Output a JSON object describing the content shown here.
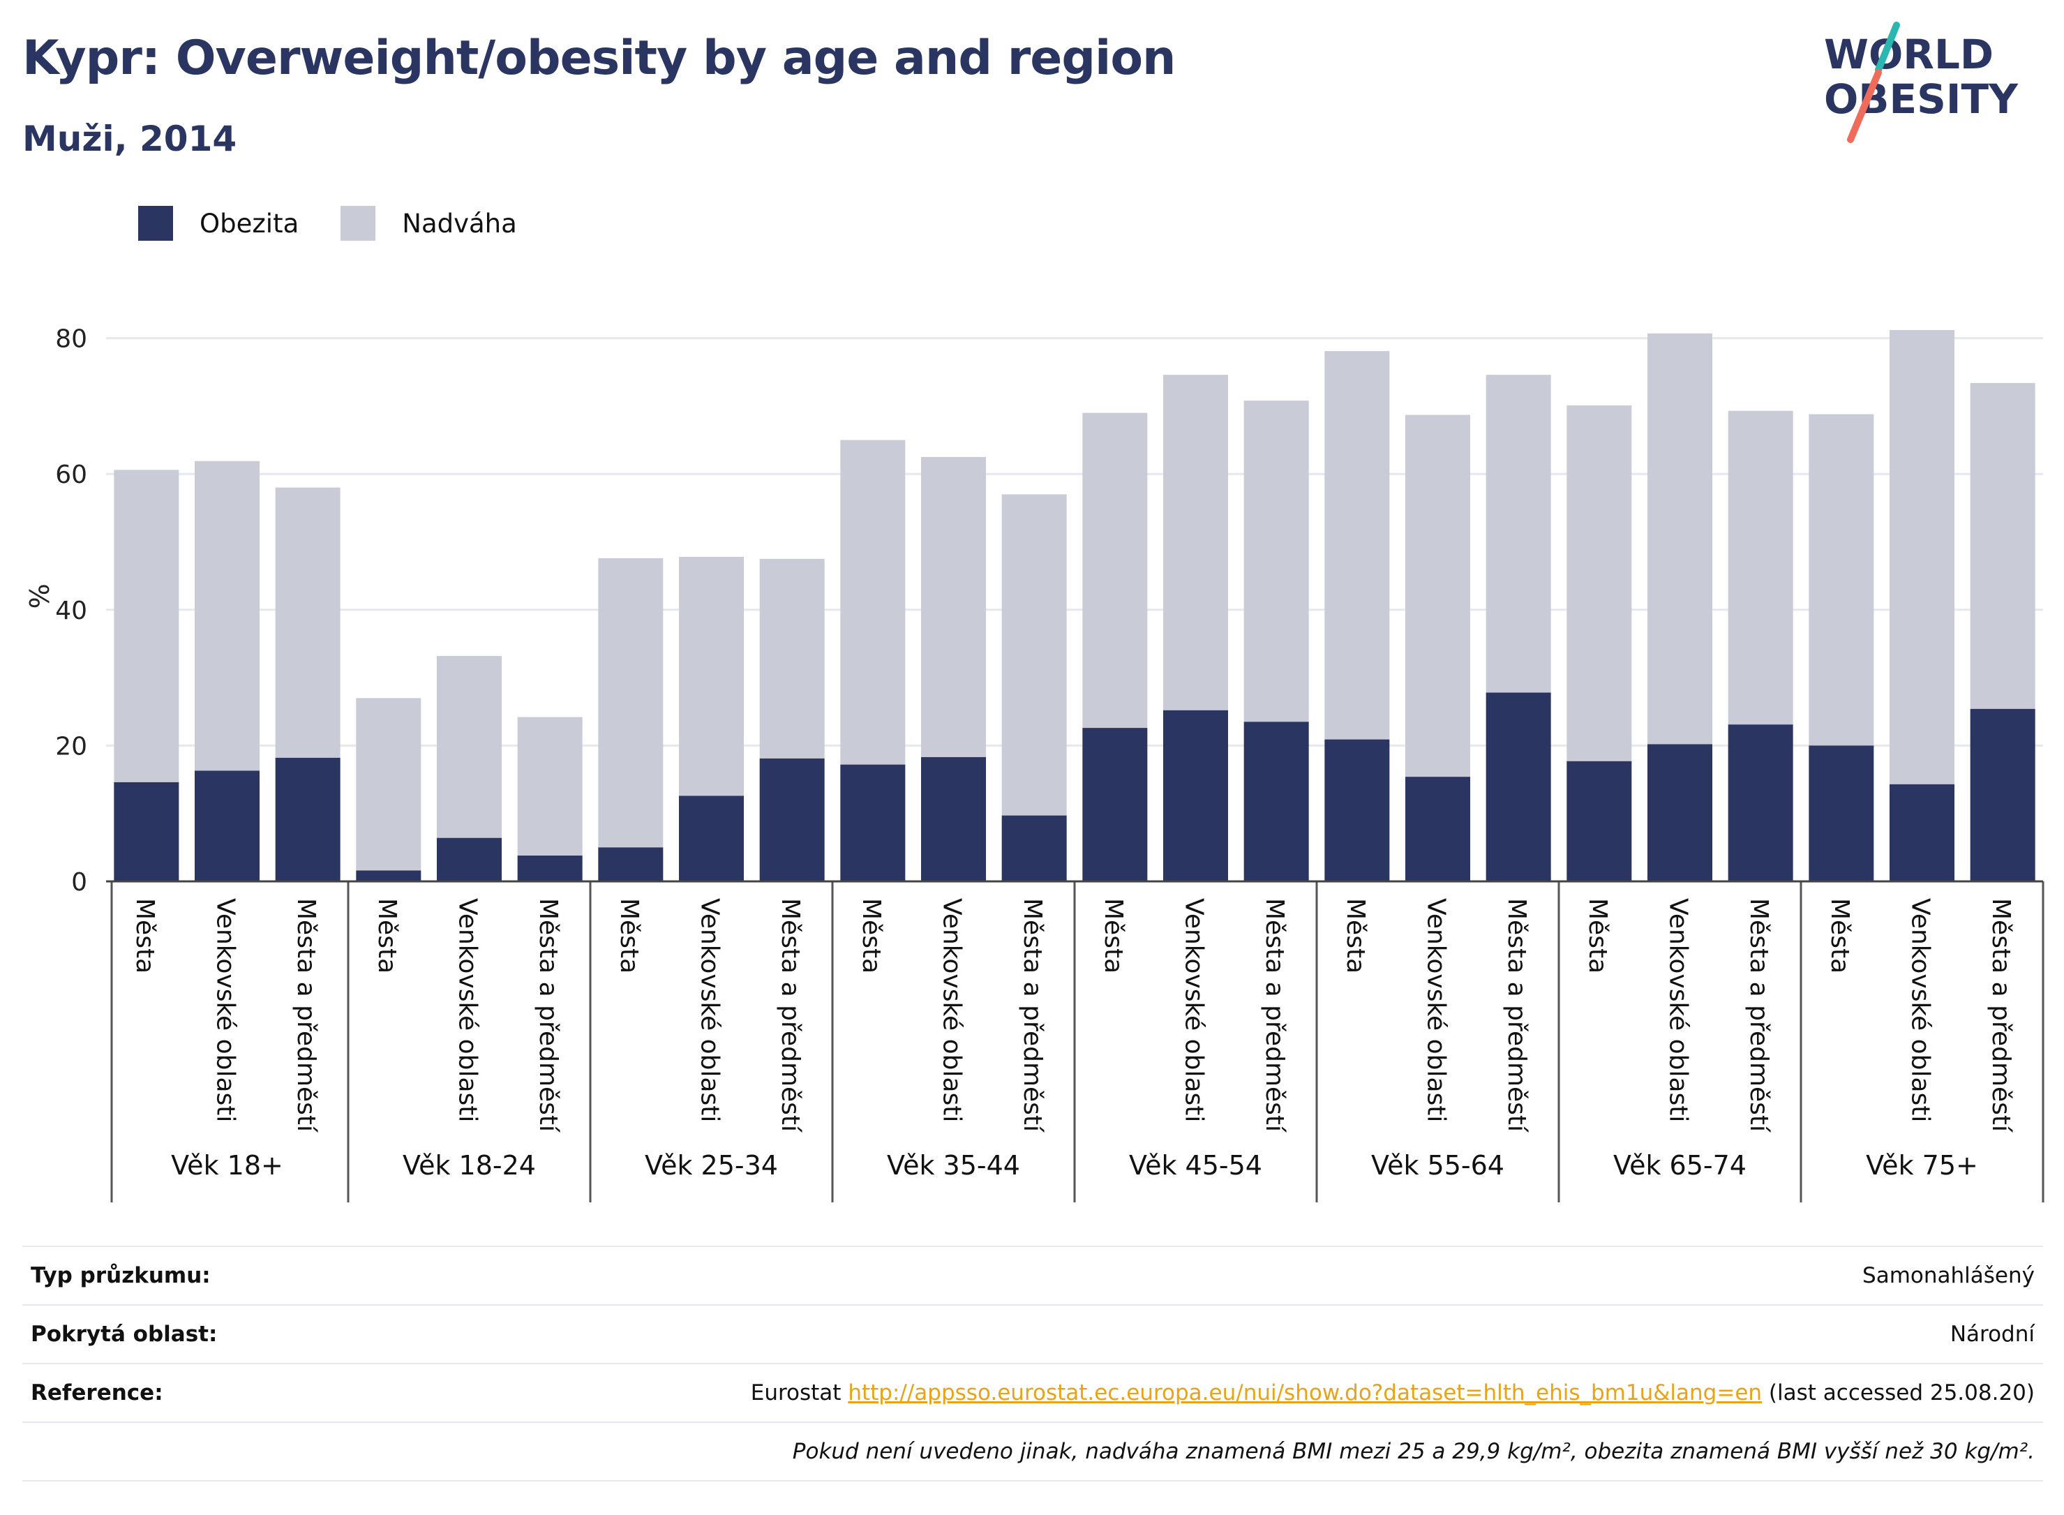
{
  "header": {
    "title": "Kypr: Overweight/obesity by age and region",
    "subtitle": "Muži, 2014"
  },
  "logo": {
    "line1": "WORLD",
    "line2": "OBESITY"
  },
  "legend": {
    "obesity_label": "Obezita",
    "overweight_label": "Nadváha"
  },
  "colors": {
    "obesity": "#2a3561",
    "overweight": "#c9cbd6",
    "grid": "#e6e8ef",
    "link": "#e8a317"
  },
  "chart_data": {
    "type": "bar",
    "stacked": true,
    "ylabel": "%",
    "ylim": [
      0,
      85
    ],
    "yticks": [
      0,
      20,
      40,
      60,
      80
    ],
    "grid": true,
    "legend_position": "top-left",
    "groups": [
      {
        "label": "Věk 18+",
        "categories": [
          "Města",
          "Venkovské oblasti",
          "Města a předměstí"
        ],
        "obesity": [
          14.6,
          16.3,
          18.2
        ],
        "overweight": [
          46.0,
          45.6,
          39.8
        ]
      },
      {
        "label": "Věk 18-24",
        "categories": [
          "Města",
          "Venkovské oblasti",
          "Města a předměstí"
        ],
        "obesity": [
          1.6,
          6.4,
          3.8
        ],
        "overweight": [
          25.4,
          26.8,
          20.4
        ]
      },
      {
        "label": "Věk 25-34",
        "categories": [
          "Města",
          "Venkovské oblasti",
          "Města a předměstí"
        ],
        "obesity": [
          5.0,
          12.6,
          18.1
        ],
        "overweight": [
          42.6,
          35.2,
          29.4
        ]
      },
      {
        "label": "Věk 35-44",
        "categories": [
          "Města",
          "Venkovské oblasti",
          "Města a předměstí"
        ],
        "obesity": [
          17.2,
          18.3,
          9.7
        ],
        "overweight": [
          47.8,
          44.2,
          47.3
        ]
      },
      {
        "label": "Věk 45-54",
        "categories": [
          "Města",
          "Venkovské oblasti",
          "Města a předměstí"
        ],
        "obesity": [
          22.6,
          25.2,
          23.5
        ],
        "overweight": [
          46.4,
          49.4,
          47.3
        ]
      },
      {
        "label": "Věk 55-64",
        "categories": [
          "Města",
          "Venkovské oblasti",
          "Města a předměstí"
        ],
        "obesity": [
          20.9,
          15.4,
          27.8
        ],
        "overweight": [
          57.2,
          53.3,
          46.8
        ]
      },
      {
        "label": "Věk 65-74",
        "categories": [
          "Města",
          "Venkovské oblasti",
          "Města a předměstí"
        ],
        "obesity": [
          17.7,
          20.2,
          23.1
        ],
        "overweight": [
          52.4,
          60.5,
          46.2
        ]
      },
      {
        "label": "Věk 75+",
        "categories": [
          "Města",
          "Venkovské oblasti",
          "Města a předměstí"
        ],
        "obesity": [
          20.0,
          14.3,
          25.4
        ],
        "overweight": [
          48.8,
          66.9,
          48.0
        ]
      }
    ]
  },
  "info": {
    "survey_type_label": "Typ průzkumu:",
    "survey_type_value": "Samonahlášený",
    "coverage_label": "Pokrytá oblast:",
    "coverage_value": "Národní",
    "reference_label": "Reference:",
    "reference_prefix": "Eurostat",
    "reference_link": "http://appsso.eurostat.ec.europa.eu/nui/show.do?dataset=hlth_ehis_bm1u&lang=en",
    "reference_suffix": "(last accessed 25.08.20)",
    "note": "Pokud není uvedeno jinak, nadváha znamená BMI mezi 25 a 29,9 kg/m², obezita znamená BMI vyšší než 30 kg/m²."
  }
}
